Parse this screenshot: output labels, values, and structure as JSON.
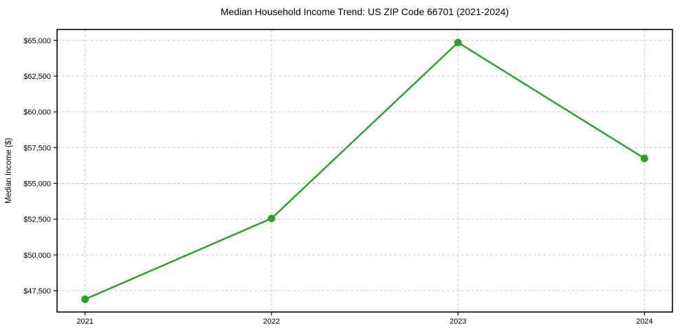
{
  "chart_data": {
    "type": "line",
    "title": "Median Household Income Trend: US ZIP Code 66701 (2021-2024)",
    "xlabel": "",
    "ylabel": "Median Income ($)",
    "x": [
      2021,
      2022,
      2023,
      2024
    ],
    "categories": [
      "2021",
      "2022",
      "2023",
      "2024"
    ],
    "series": [
      {
        "name": "Median Household Income",
        "values": [
          46900,
          52550,
          64850,
          56750
        ],
        "color": "#2ca02c"
      }
    ],
    "xlim": [
      2020.85,
      2024.15
    ],
    "ylim": [
      46010,
      65760
    ],
    "yticks": [
      47500,
      50000,
      52500,
      55000,
      57500,
      60000,
      62500,
      65000
    ],
    "ytick_labels": [
      "$47,500",
      "$50,000",
      "$52,500",
      "$55,000",
      "$57,500",
      "$60,000",
      "$62,500",
      "$65,000"
    ],
    "xticks": [
      2021,
      2022,
      2023,
      2024
    ],
    "xtick_labels": [
      "2021",
      "2022",
      "2023",
      "2024"
    ],
    "grid": true,
    "grid_style": "dashed",
    "legend": false,
    "marker": "circle",
    "marker_size": 5.5,
    "line_width": 2.5,
    "colors": {
      "line": "#2ca02c",
      "grid": "#c9c9c9",
      "axis": "#000000",
      "background": "#ffffff",
      "text": "#000000"
    }
  }
}
